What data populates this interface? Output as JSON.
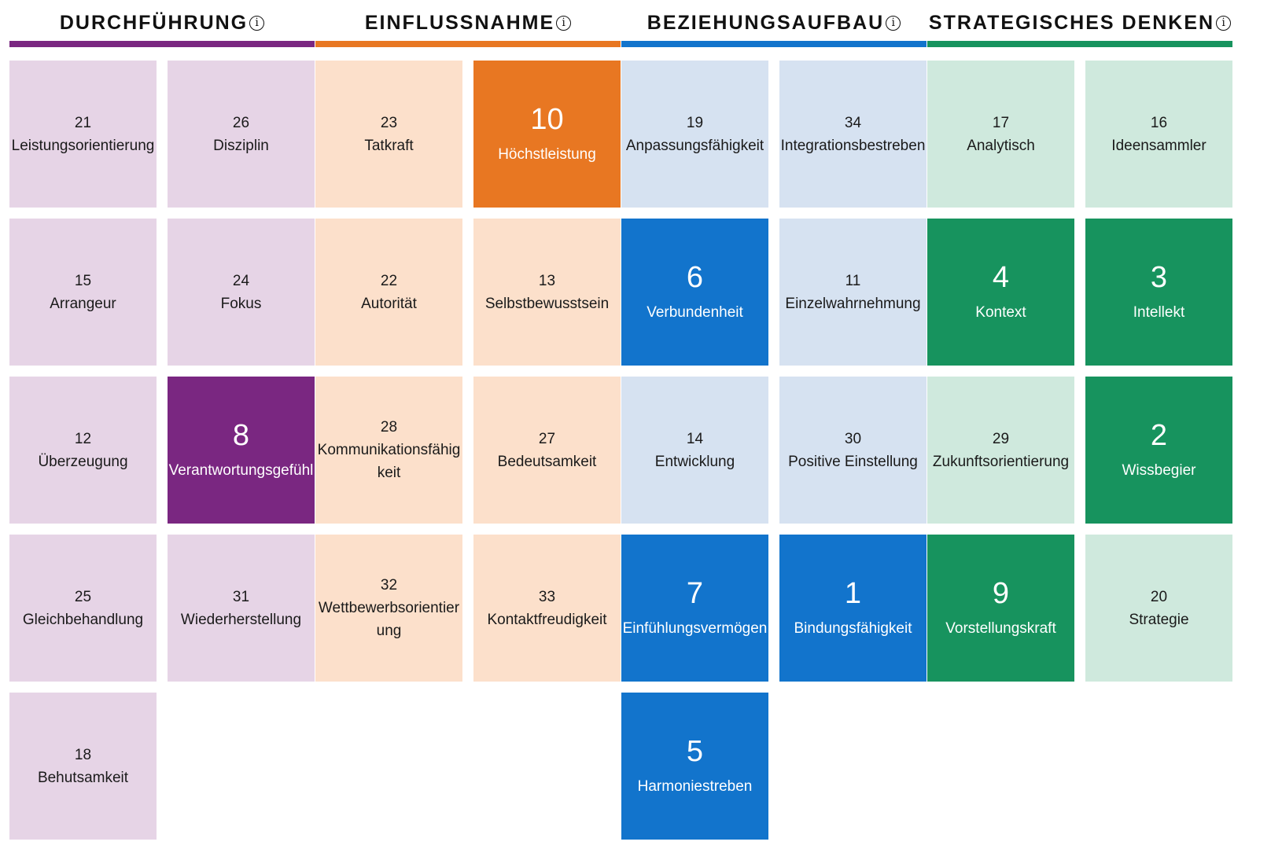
{
  "colors": {
    "purple": "#7a2781",
    "purple_light": "#e6d4e6",
    "orange": "#e87722",
    "orange_light": "#fce0cb",
    "blue": "#1274cc",
    "blue_light": "#d6e2f1",
    "green": "#17935e",
    "green_light": "#cfe9dd"
  },
  "domains": [
    {
      "title": "DURCHFÜHRUNG",
      "info_icon": "info-icon",
      "accent": "#7a2781",
      "tiles": [
        {
          "rank": "21",
          "name": "Leistungsorientierung",
          "highlighted": false
        },
        {
          "rank": "26",
          "name": "Disziplin",
          "highlighted": false
        },
        {
          "rank": "15",
          "name": "Arrangeur",
          "highlighted": false
        },
        {
          "rank": "24",
          "name": "Fokus",
          "highlighted": false
        },
        {
          "rank": "12",
          "name": "Überzeugung",
          "highlighted": false
        },
        {
          "rank": "8",
          "name": "Verantwortungsgefühl",
          "highlighted": true
        },
        {
          "rank": "25",
          "name": "Gleichbehandlung",
          "highlighted": false
        },
        {
          "rank": "31",
          "name": "Wiederherstellung",
          "highlighted": false
        },
        {
          "rank": "18",
          "name": "Behutsamkeit",
          "highlighted": false
        }
      ]
    },
    {
      "title": "EINFLUSSNAHME",
      "info_icon": "info-icon",
      "accent": "#e87722",
      "tiles": [
        {
          "rank": "23",
          "name": "Tatkraft",
          "highlighted": false
        },
        {
          "rank": "10",
          "name": "Höchstleistung",
          "highlighted": true
        },
        {
          "rank": "22",
          "name": "Autorität",
          "highlighted": false
        },
        {
          "rank": "13",
          "name": "Selbstbewusstsein",
          "highlighted": false
        },
        {
          "rank": "28",
          "name": "Kommunikationsfähigkeit",
          "highlighted": false
        },
        {
          "rank": "27",
          "name": "Bedeutsamkeit",
          "highlighted": false
        },
        {
          "rank": "32",
          "name": "Wettbewerbsorientierung",
          "highlighted": false
        },
        {
          "rank": "33",
          "name": "Kontaktfreudigkeit",
          "highlighted": false
        }
      ]
    },
    {
      "title": "BEZIEHUNGSAUFBAU",
      "info_icon": "info-icon",
      "accent": "#1274cc",
      "tiles": [
        {
          "rank": "19",
          "name": "Anpassungsfähigkeit",
          "highlighted": false
        },
        {
          "rank": "34",
          "name": "Integrationsbestreben",
          "highlighted": false
        },
        {
          "rank": "6",
          "name": "Verbundenheit",
          "highlighted": true
        },
        {
          "rank": "11",
          "name": "Einzelwahrnehmung",
          "highlighted": false
        },
        {
          "rank": "14",
          "name": "Entwicklung",
          "highlighted": false
        },
        {
          "rank": "30",
          "name": "Positive Einstellung",
          "highlighted": false
        },
        {
          "rank": "7",
          "name": "Einfühlungsvermögen",
          "highlighted": true
        },
        {
          "rank": "1",
          "name": "Bindungsfähigkeit",
          "highlighted": true
        },
        {
          "rank": "5",
          "name": "Harmoniestreben",
          "highlighted": true
        }
      ]
    },
    {
      "title": "STRATEGISCHES DENKEN",
      "info_icon": "info-icon",
      "accent": "#17935e",
      "tiles": [
        {
          "rank": "17",
          "name": "Analytisch",
          "highlighted": false
        },
        {
          "rank": "16",
          "name": "Ideensammler",
          "highlighted": false
        },
        {
          "rank": "4",
          "name": "Kontext",
          "highlighted": true
        },
        {
          "rank": "3",
          "name": "Intellekt",
          "highlighted": true
        },
        {
          "rank": "29",
          "name": "Zukunftsorientierung",
          "highlighted": false
        },
        {
          "rank": "2",
          "name": "Wissbegier",
          "highlighted": true
        },
        {
          "rank": "9",
          "name": "Vorstellungskraft",
          "highlighted": true
        },
        {
          "rank": "20",
          "name": "Strategie",
          "highlighted": false
        }
      ]
    }
  ]
}
